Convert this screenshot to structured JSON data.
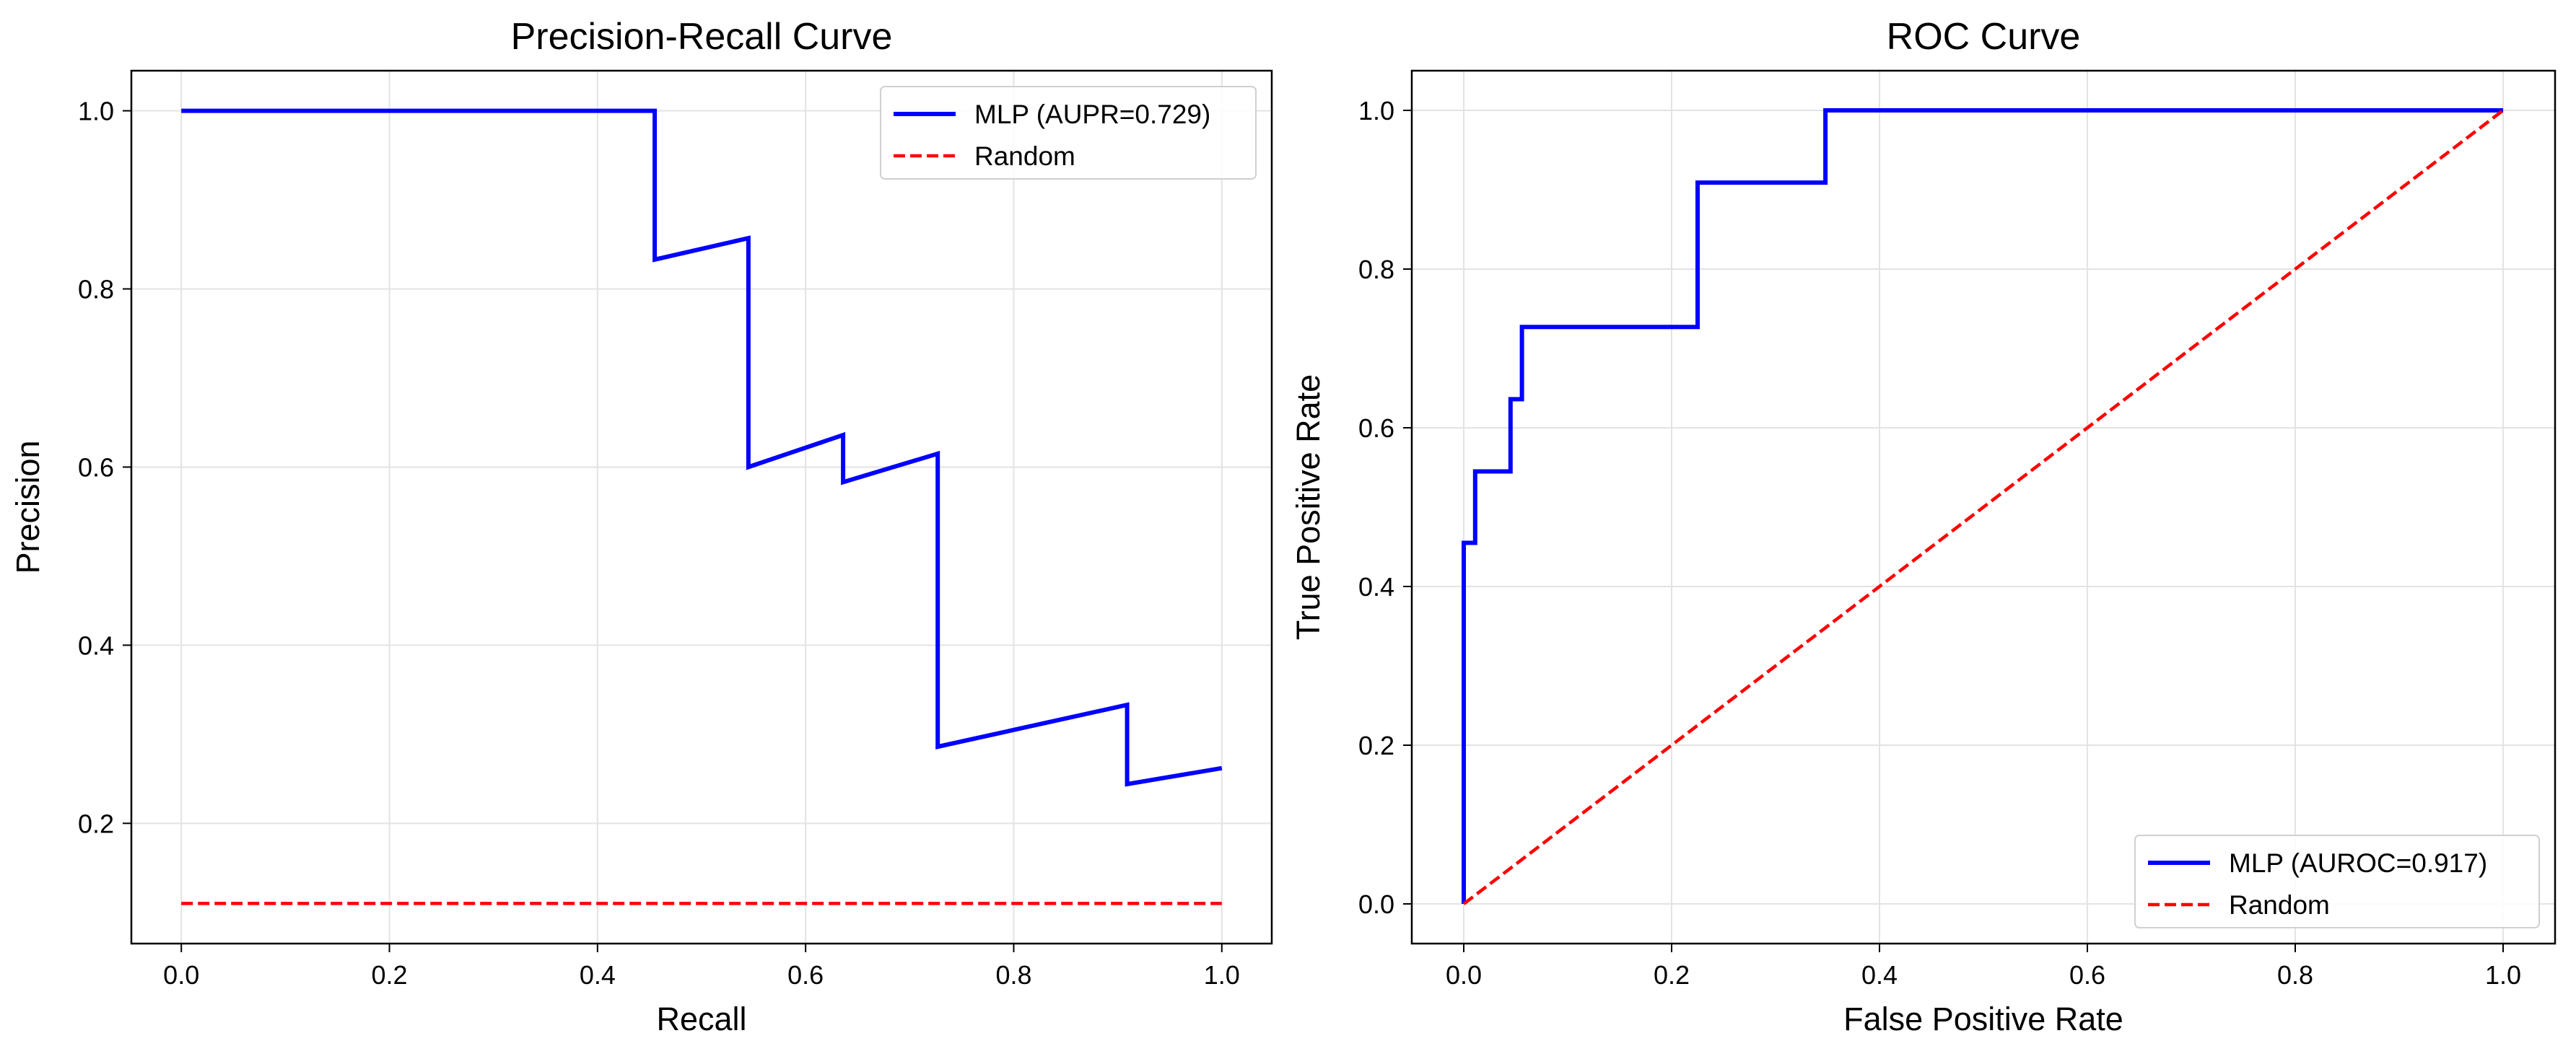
{
  "chart_data": [
    {
      "type": "line",
      "title": "Precision-Recall Curve",
      "xlabel": "Recall",
      "ylabel": "Precision",
      "xlim": [
        -0.048,
        1.048
      ],
      "ylim": [
        0.065,
        1.045
      ],
      "xticks": [
        0.0,
        0.2,
        0.4,
        0.6,
        0.8,
        1.0
      ],
      "xtick_labels": [
        "0.0",
        "0.2",
        "0.4",
        "0.6",
        "0.8",
        "1.0"
      ],
      "yticks": [
        0.2,
        0.4,
        0.6,
        0.8,
        1.0
      ],
      "ytick_labels": [
        "0.2",
        "0.4",
        "0.6",
        "0.8",
        "1.0"
      ],
      "grid": true,
      "legend_position": "upper right",
      "series": [
        {
          "name": "MLP (AUPR=0.729)",
          "color": "#0000ff",
          "style": "solid",
          "x": [
            0.0,
            0.455,
            0.455,
            0.545,
            0.545,
            0.636,
            0.636,
            0.727,
            0.727,
            0.909,
            0.909,
            1.0
          ],
          "y": [
            1.0,
            1.0,
            0.833,
            0.857,
            0.6,
            0.636,
            0.583,
            0.615,
            0.286,
            0.333,
            0.244,
            0.262
          ]
        },
        {
          "name": "Random",
          "color": "#ff0000",
          "style": "dashed",
          "x": [
            0.0,
            1.0
          ],
          "y": [
            0.11,
            0.11
          ]
        }
      ]
    },
    {
      "type": "line",
      "title": "ROC Curve",
      "xlabel": "False Positive Rate",
      "ylabel": "True Positive Rate",
      "xlim": [
        -0.05,
        1.05
      ],
      "ylim": [
        -0.05,
        1.05
      ],
      "xticks": [
        0.0,
        0.2,
        0.4,
        0.6,
        0.8,
        1.0
      ],
      "xtick_labels": [
        "0.0",
        "0.2",
        "0.4",
        "0.6",
        "0.8",
        "1.0"
      ],
      "yticks": [
        0.0,
        0.2,
        0.4,
        0.6,
        0.8,
        1.0
      ],
      "ytick_labels": [
        "0.0",
        "0.2",
        "0.4",
        "0.6",
        "0.8",
        "1.0"
      ],
      "grid": true,
      "legend_position": "lower right",
      "series": [
        {
          "name": "MLP (AUROC=0.917)",
          "color": "#0000ff",
          "style": "solid",
          "x": [
            0.0,
            0.0,
            0.011,
            0.011,
            0.045,
            0.045,
            0.056,
            0.056,
            0.225,
            0.225,
            0.348,
            0.348,
            1.0
          ],
          "y": [
            0.0,
            0.455,
            0.455,
            0.545,
            0.545,
            0.636,
            0.636,
            0.727,
            0.727,
            0.909,
            0.909,
            1.0,
            1.0
          ]
        },
        {
          "name": "Random",
          "color": "#ff0000",
          "style": "dashed",
          "x": [
            0.0,
            1.0
          ],
          "y": [
            0.0,
            1.0
          ]
        }
      ]
    }
  ]
}
